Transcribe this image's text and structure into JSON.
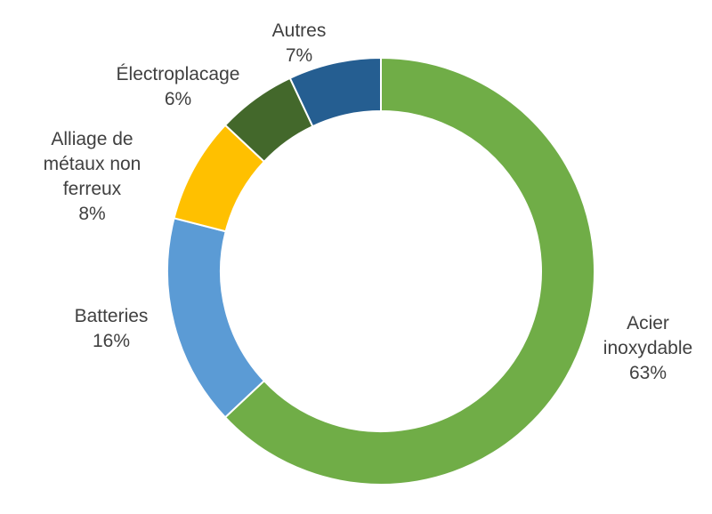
{
  "chart_data": {
    "type": "pie",
    "subtype": "donut",
    "title": "",
    "legend": "none",
    "slices": [
      {
        "label": "Acier inoxydable",
        "label_lines": [
          "Acier",
          "inoxydable"
        ],
        "value": 63,
        "value_label": "63%",
        "color": "#70AD47"
      },
      {
        "label": "Batteries",
        "label_lines": [
          "Batteries"
        ],
        "value": 16,
        "value_label": "16%",
        "color": "#5B9BD5"
      },
      {
        "label": "Alliage de métaux non ferreux",
        "label_lines": [
          "Alliage de",
          "métaux non",
          "ferreux"
        ],
        "value": 8,
        "value_label": "8%",
        "color": "#FFC000"
      },
      {
        "label": "Électroplacage",
        "label_lines": [
          "Électroplacage"
        ],
        "value": 6,
        "value_label": "6%",
        "color": "#43682B"
      },
      {
        "label": "Autres",
        "label_lines": [
          "Autres"
        ],
        "value": 7,
        "value_label": "7%",
        "color": "#255E91"
      }
    ]
  }
}
